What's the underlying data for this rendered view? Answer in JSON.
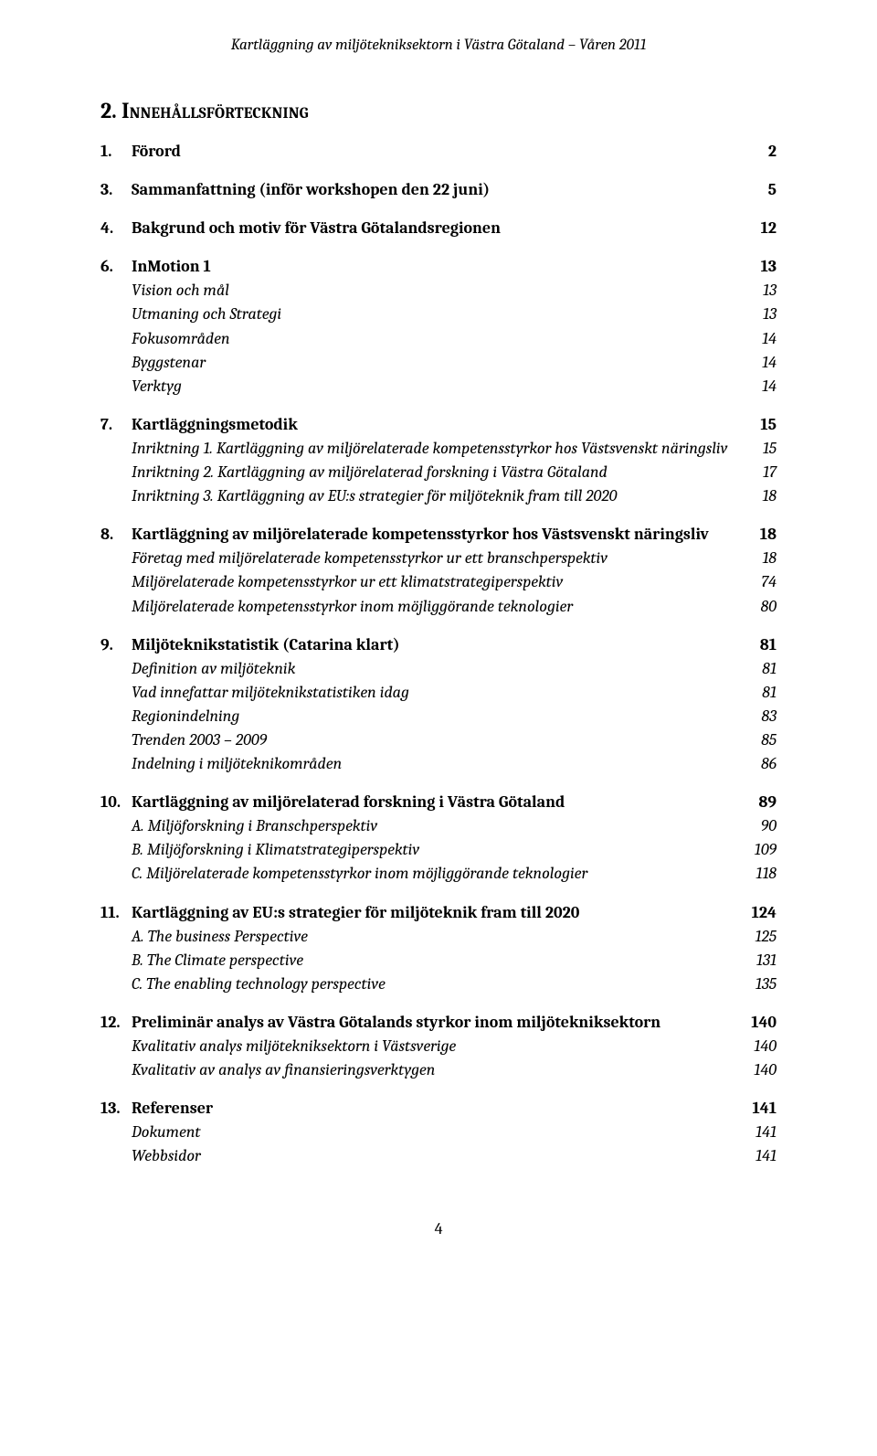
{
  "running_header": "Kartläggning av miljötekniksektorn i Västra Götaland – Våren 2011",
  "title_num": "2.",
  "title_text": "Innehållsförteckning",
  "page_number": "4",
  "toc": [
    {
      "lvl": 1,
      "num": "1.",
      "label": "Förord",
      "page": "2"
    },
    {
      "lvl": 1,
      "num": "3.",
      "label": "Sammanfattning (inför workshopen den 22 juni)",
      "page": "5"
    },
    {
      "lvl": 1,
      "num": "4.",
      "label": "Bakgrund och motiv för Västra Götalandsregionen",
      "page": "12"
    },
    {
      "lvl": 1,
      "num": "6.",
      "label": "InMotion 1",
      "page": "13"
    },
    {
      "lvl": 2,
      "label": "Vision och mål",
      "page": "13"
    },
    {
      "lvl": 2,
      "label": "Utmaning och Strategi",
      "page": "13"
    },
    {
      "lvl": 2,
      "label": "Fokusområden",
      "page": "14"
    },
    {
      "lvl": 2,
      "label": "Byggstenar",
      "page": "14"
    },
    {
      "lvl": 2,
      "label": "Verktyg",
      "page": "14"
    },
    {
      "lvl": 1,
      "num": "7.",
      "label": "Kartläggningsmetodik",
      "page": "15"
    },
    {
      "lvl": 2,
      "label": "Inriktning 1. Kartläggning av miljörelaterade kompetensstyrkor hos Västsvenskt näringsliv",
      "page": "15"
    },
    {
      "lvl": 2,
      "label": "Inriktning 2. Kartläggning av miljörelaterad forskning i Västra Götaland",
      "page": "17"
    },
    {
      "lvl": 2,
      "label": "Inriktning 3. Kartläggning av EU:s strategier för miljöteknik fram till 2020",
      "page": "18"
    },
    {
      "lvl": 1,
      "num": "8.",
      "label": "Kartläggning av miljörelaterade kompetensstyrkor hos Västsvenskt näringsliv",
      "page": "18"
    },
    {
      "lvl": 2,
      "label": "Företag med miljörelaterade kompetensstyrkor ur ett branschperspektiv",
      "page": "18"
    },
    {
      "lvl": 2,
      "label": "Miljörelaterade kompetensstyrkor ur ett klimatstrategiperspektiv",
      "page": "74"
    },
    {
      "lvl": 2,
      "label": "Miljörelaterade kompetensstyrkor inom möjliggörande teknologier",
      "page": "80"
    },
    {
      "lvl": 1,
      "num": "9.",
      "label": "Miljöteknikstatistik (Catarina klart)",
      "page": "81"
    },
    {
      "lvl": 2,
      "label": "Definition av miljöteknik",
      "page": "81"
    },
    {
      "lvl": 2,
      "label": "Vad innefattar miljöteknikstatistiken idag",
      "page": "81"
    },
    {
      "lvl": 2,
      "label": "Regionindelning",
      "page": "83"
    },
    {
      "lvl": 2,
      "label": "Trenden 2003 – 2009",
      "page": "85"
    },
    {
      "lvl": 2,
      "label": "Indelning i miljöteknikområden",
      "page": "86"
    },
    {
      "lvl": 1,
      "num": "10.",
      "label": "Kartläggning av miljörelaterad forskning i Västra Götaland",
      "page": "89"
    },
    {
      "lvl": 2,
      "label": "A. Miljöforskning i Branschperspektiv",
      "page": "90"
    },
    {
      "lvl": 2,
      "label": "B. Miljöforskning i Klimatstrategiperspektiv",
      "page": "109"
    },
    {
      "lvl": 2,
      "label": "C. Miljörelaterade kompetensstyrkor inom möjliggörande teknologier",
      "page": "118"
    },
    {
      "lvl": 1,
      "num": "11.",
      "label": "Kartläggning av EU:s strategier för miljöteknik fram till 2020",
      "page": "124"
    },
    {
      "lvl": 2,
      "label": "A. The business Perspective",
      "page": "125"
    },
    {
      "lvl": 2,
      "label": "B. The Climate perspective",
      "page": "131"
    },
    {
      "lvl": 2,
      "label": "C. The enabling technology perspective",
      "page": "135"
    },
    {
      "lvl": 1,
      "num": "12.",
      "label": "Preliminär analys av Västra Götalands styrkor inom miljötekniksektorn",
      "page": "140"
    },
    {
      "lvl": 2,
      "label": "Kvalitativ analys miljötekniksektorn i Västsverige",
      "page": "140"
    },
    {
      "lvl": 2,
      "label": "Kvalitativ av analys av finansieringsverktygen",
      "page": "140"
    },
    {
      "lvl": 1,
      "num": "13.",
      "label": "Referenser",
      "page": "141"
    },
    {
      "lvl": 2,
      "label": "Dokument",
      "page": "141"
    },
    {
      "lvl": 2,
      "label": "Webbsidor",
      "page": "141"
    }
  ]
}
